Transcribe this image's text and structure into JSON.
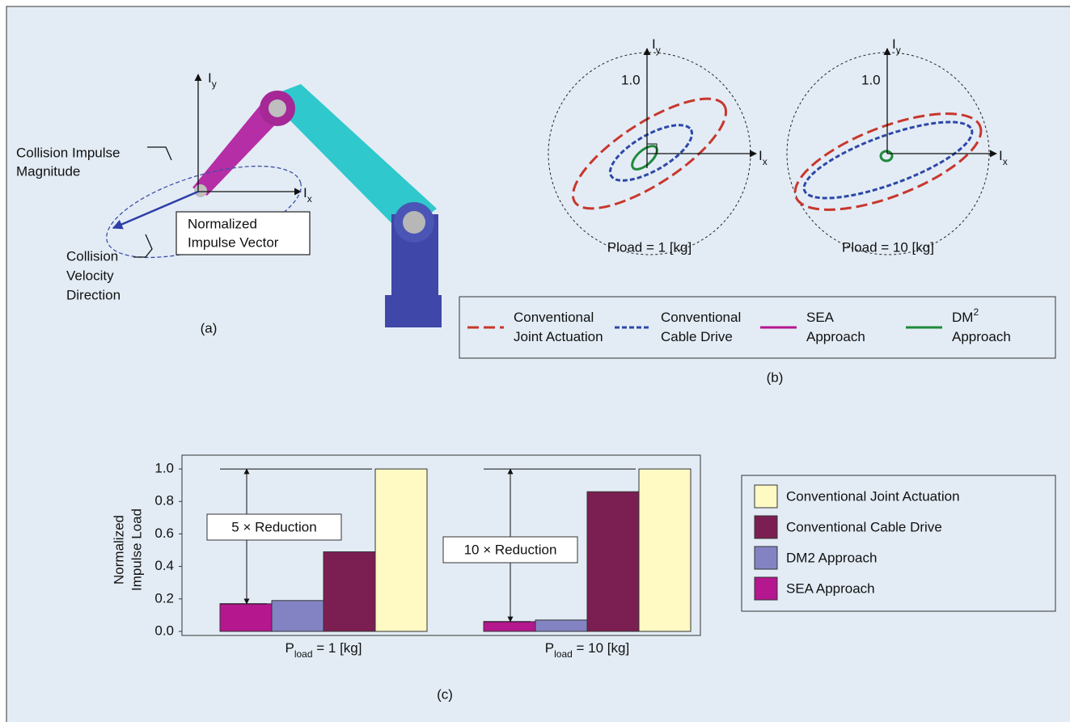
{
  "panel_a": {
    "axis_y": {
      "base": "I",
      "sub": "y"
    },
    "axis_x": {
      "base": "I",
      "sub": "x"
    },
    "impulse_magnitude": [
      "Collision Impulse",
      "Magnitude"
    ],
    "impulse_vector": [
      "Normalized",
      "Impulse Vector"
    ],
    "velocity_direction": [
      "Collision",
      "Velocity",
      "Direction"
    ],
    "caption": "(a)"
  },
  "panel_b": {
    "plots": [
      {
        "axis_y": {
          "base": "I",
          "sub": "y"
        },
        "axis_x": {
          "base": "I",
          "sub": "x"
        },
        "tick": "1.0",
        "label": "Pload = 1 [kg]"
      },
      {
        "axis_y": {
          "base": "I",
          "sub": "y"
        },
        "axis_x": {
          "base": "I",
          "sub": "x"
        },
        "tick": "1.0",
        "label": "Pload = 10 [kg]"
      }
    ],
    "legend": [
      {
        "lines": [
          "Conventional",
          "Joint Actuation"
        ],
        "color": "#c8372d",
        "dash": "14 6"
      },
      {
        "lines": [
          "Conventional",
          "Cable Drive"
        ],
        "color": "#2d48a8",
        "dash": "6 3"
      },
      {
        "lines": [
          "SEA",
          "Approach"
        ],
        "color": "#b5178f",
        "dash": "none"
      },
      {
        "lines": [
          "DM",
          "Approach"
        ],
        "sup": "2",
        "color": "#1f8a3c",
        "dash": "none"
      }
    ],
    "caption": "(b)"
  },
  "chart_data": {
    "type": "bar",
    "y_label": [
      "Normalized",
      "Impulse Load"
    ],
    "categories": [
      {
        "base": "P",
        "sub": "load",
        "suffix": " = 1 [kg]"
      },
      {
        "base": "P",
        "sub": "load",
        "suffix": " = 10 [kg]"
      }
    ],
    "series": [
      {
        "name": "Conventional Joint Actuation",
        "color": "#fff9c4",
        "values": [
          1.0,
          1.0
        ]
      },
      {
        "name": "Conventional Cable Drive",
        "color": "#7b1f52",
        "values": [
          0.49,
          0.86
        ]
      },
      {
        "name": "DM2 Approach",
        "color": "#8383c4",
        "values": [
          0.19,
          0.07
        ]
      },
      {
        "name": "SEA Approach",
        "color": "#b5178f",
        "values": [
          0.17,
          0.06
        ]
      }
    ],
    "annotations": [
      "5 × Reduction",
      "10 × Reduction"
    ],
    "ylim": [
      -0.025,
      1.085
    ],
    "yticks": [
      {
        "value": 0,
        "label": "0.0"
      },
      0.2,
      0.4,
      0.6,
      0.8,
      {
        "value": 1,
        "label": "1.0"
      }
    ],
    "caption": "(c)"
  }
}
